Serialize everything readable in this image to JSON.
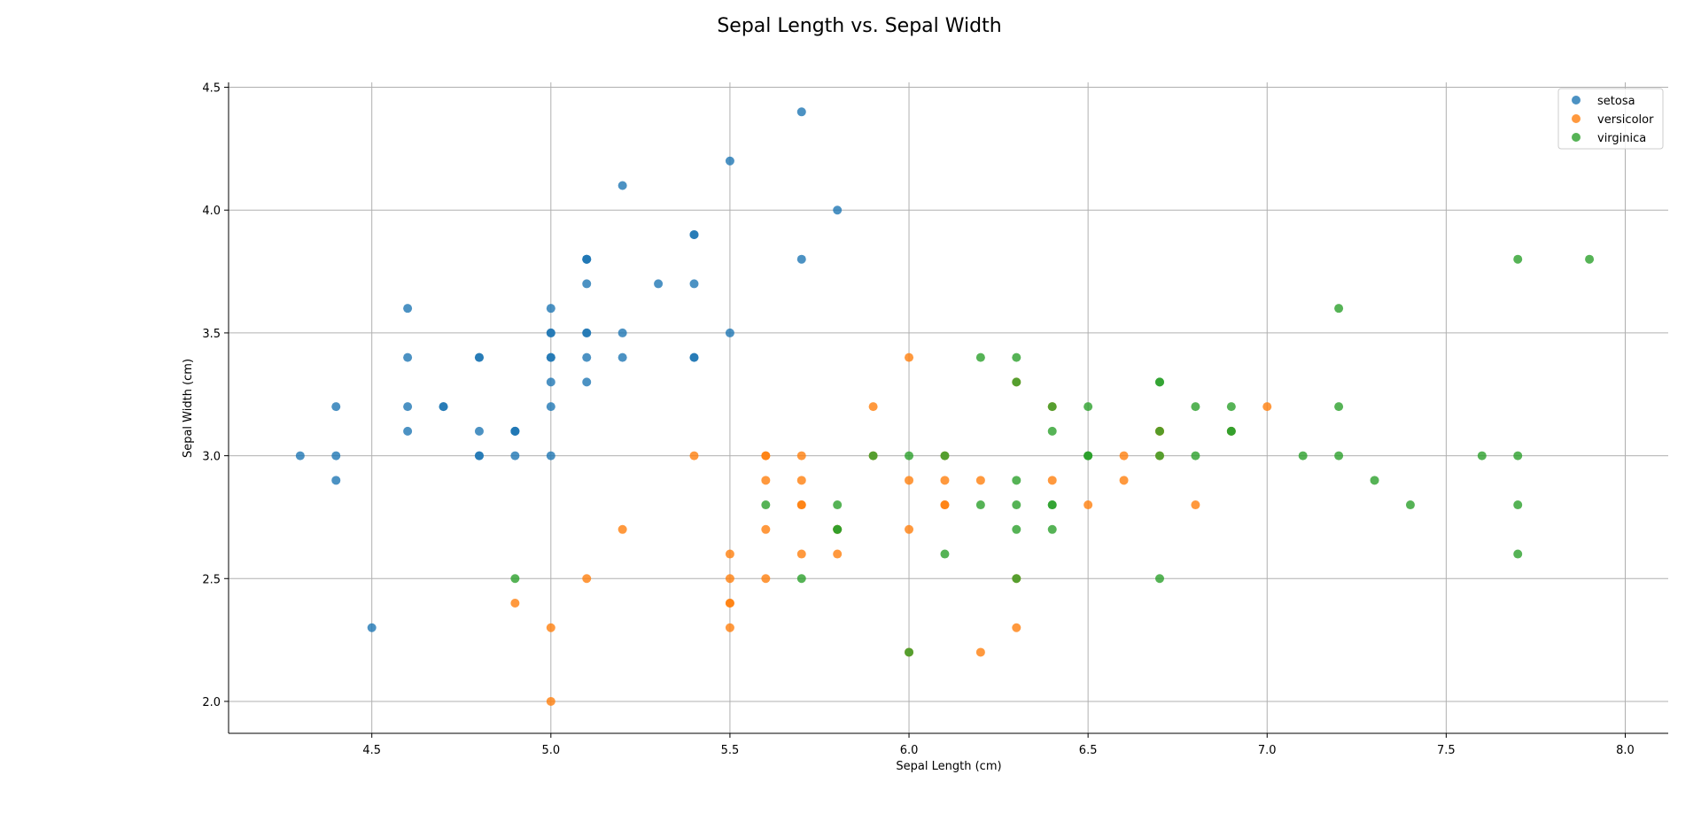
{
  "chart_data": {
    "type": "scatter",
    "title": "Sepal Length vs. Sepal Width",
    "xlabel": "Sepal Length (cm)",
    "ylabel": "Sepal Width (cm)",
    "xlim": [
      4.1,
      8.12
    ],
    "ylim": [
      1.87,
      4.52
    ],
    "xticks": [
      "4.5",
      "5.0",
      "5.5",
      "6.0",
      "6.5",
      "7.0",
      "7.5",
      "8.0"
    ],
    "yticks": [
      "2.0",
      "2.5",
      "3.0",
      "3.5",
      "4.0",
      "4.5"
    ],
    "grid": true,
    "legend": "top-right",
    "series": [
      {
        "name": "setosa",
        "color": "#1f77b4",
        "points": [
          [
            5.1,
            3.5
          ],
          [
            4.9,
            3.0
          ],
          [
            4.7,
            3.2
          ],
          [
            4.6,
            3.1
          ],
          [
            5.0,
            3.6
          ],
          [
            5.4,
            3.9
          ],
          [
            4.6,
            3.4
          ],
          [
            5.0,
            3.4
          ],
          [
            4.4,
            2.9
          ],
          [
            4.9,
            3.1
          ],
          [
            5.4,
            3.7
          ],
          [
            4.8,
            3.4
          ],
          [
            4.8,
            3.0
          ],
          [
            4.3,
            3.0
          ],
          [
            5.8,
            4.0
          ],
          [
            5.7,
            4.4
          ],
          [
            5.4,
            3.9
          ],
          [
            5.1,
            3.5
          ],
          [
            5.7,
            3.8
          ],
          [
            5.1,
            3.8
          ],
          [
            5.4,
            3.4
          ],
          [
            5.1,
            3.7
          ],
          [
            4.6,
            3.6
          ],
          [
            5.1,
            3.3
          ],
          [
            4.8,
            3.4
          ],
          [
            5.0,
            3.0
          ],
          [
            5.0,
            3.4
          ],
          [
            5.2,
            3.5
          ],
          [
            5.2,
            3.4
          ],
          [
            4.7,
            3.2
          ],
          [
            4.8,
            3.1
          ],
          [
            5.4,
            3.4
          ],
          [
            5.2,
            4.1
          ],
          [
            5.5,
            4.2
          ],
          [
            4.9,
            3.1
          ],
          [
            5.0,
            3.2
          ],
          [
            5.5,
            3.5
          ],
          [
            4.9,
            3.1
          ],
          [
            4.4,
            3.0
          ],
          [
            5.1,
            3.4
          ],
          [
            5.0,
            3.5
          ],
          [
            4.5,
            2.3
          ],
          [
            4.4,
            3.2
          ],
          [
            5.0,
            3.5
          ],
          [
            5.1,
            3.8
          ],
          [
            4.8,
            3.0
          ],
          [
            5.1,
            3.8
          ],
          [
            4.6,
            3.2
          ],
          [
            5.3,
            3.7
          ],
          [
            5.0,
            3.3
          ]
        ]
      },
      {
        "name": "versicolor",
        "color": "#ff7f0e",
        "points": [
          [
            7.0,
            3.2
          ],
          [
            6.4,
            3.2
          ],
          [
            6.9,
            3.1
          ],
          [
            5.5,
            2.3
          ],
          [
            6.5,
            2.8
          ],
          [
            5.7,
            2.8
          ],
          [
            6.3,
            3.3
          ],
          [
            4.9,
            2.4
          ],
          [
            6.6,
            2.9
          ],
          [
            5.2,
            2.7
          ],
          [
            5.0,
            2.0
          ],
          [
            5.9,
            3.0
          ],
          [
            6.0,
            2.2
          ],
          [
            6.1,
            2.9
          ],
          [
            5.6,
            2.9
          ],
          [
            6.7,
            3.1
          ],
          [
            5.6,
            3.0
          ],
          [
            5.8,
            2.7
          ],
          [
            6.2,
            2.2
          ],
          [
            5.6,
            2.5
          ],
          [
            5.9,
            3.2
          ],
          [
            6.1,
            2.8
          ],
          [
            6.3,
            2.5
          ],
          [
            6.1,
            2.8
          ],
          [
            6.4,
            2.9
          ],
          [
            6.6,
            3.0
          ],
          [
            6.8,
            2.8
          ],
          [
            6.7,
            3.0
          ],
          [
            6.0,
            2.9
          ],
          [
            5.7,
            2.6
          ],
          [
            5.5,
            2.4
          ],
          [
            5.5,
            2.4
          ],
          [
            5.8,
            2.7
          ],
          [
            6.0,
            2.7
          ],
          [
            5.4,
            3.0
          ],
          [
            6.0,
            3.4
          ],
          [
            6.7,
            3.1
          ],
          [
            6.3,
            2.3
          ],
          [
            5.6,
            3.0
          ],
          [
            5.5,
            2.5
          ],
          [
            5.5,
            2.6
          ],
          [
            6.1,
            3.0
          ],
          [
            5.8,
            2.6
          ],
          [
            5.0,
            2.3
          ],
          [
            5.6,
            2.7
          ],
          [
            5.7,
            3.0
          ],
          [
            5.7,
            2.9
          ],
          [
            6.2,
            2.9
          ],
          [
            5.1,
            2.5
          ],
          [
            5.7,
            2.8
          ]
        ]
      },
      {
        "name": "virginica",
        "color": "#2ca02c",
        "points": [
          [
            6.3,
            3.3
          ],
          [
            5.8,
            2.7
          ],
          [
            7.1,
            3.0
          ],
          [
            6.3,
            2.9
          ],
          [
            6.5,
            3.0
          ],
          [
            7.6,
            3.0
          ],
          [
            4.9,
            2.5
          ],
          [
            7.3,
            2.9
          ],
          [
            6.7,
            2.5
          ],
          [
            7.2,
            3.6
          ],
          [
            6.5,
            3.2
          ],
          [
            6.4,
            2.7
          ],
          [
            6.8,
            3.0
          ],
          [
            5.7,
            2.5
          ],
          [
            5.8,
            2.8
          ],
          [
            6.4,
            3.2
          ],
          [
            6.5,
            3.0
          ],
          [
            7.7,
            3.8
          ],
          [
            7.7,
            2.6
          ],
          [
            6.0,
            2.2
          ],
          [
            6.9,
            3.2
          ],
          [
            5.6,
            2.8
          ],
          [
            7.7,
            2.8
          ],
          [
            6.3,
            2.7
          ],
          [
            6.7,
            3.3
          ],
          [
            7.2,
            3.2
          ],
          [
            6.2,
            2.8
          ],
          [
            6.1,
            3.0
          ],
          [
            6.4,
            2.8
          ],
          [
            7.2,
            3.0
          ],
          [
            7.4,
            2.8
          ],
          [
            7.9,
            3.8
          ],
          [
            6.4,
            2.8
          ],
          [
            6.3,
            2.8
          ],
          [
            6.1,
            2.6
          ],
          [
            7.7,
            3.0
          ],
          [
            6.3,
            3.4
          ],
          [
            6.4,
            3.1
          ],
          [
            6.0,
            3.0
          ],
          [
            6.9,
            3.1
          ],
          [
            6.7,
            3.1
          ],
          [
            6.9,
            3.1
          ],
          [
            5.8,
            2.7
          ],
          [
            6.8,
            3.2
          ],
          [
            6.7,
            3.3
          ],
          [
            6.7,
            3.0
          ],
          [
            6.3,
            2.5
          ],
          [
            6.5,
            3.0
          ],
          [
            6.2,
            3.4
          ],
          [
            5.9,
            3.0
          ]
        ]
      }
    ]
  }
}
